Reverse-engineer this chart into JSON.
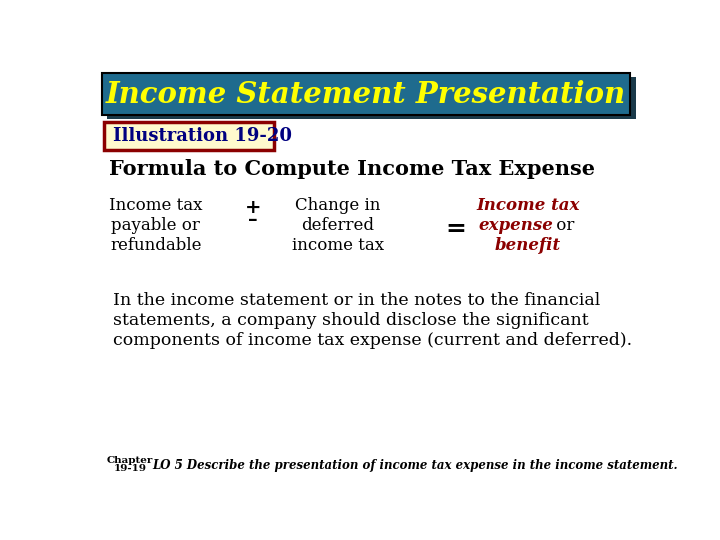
{
  "title": "Income Statement Presentation",
  "title_bg_color": "#1F6B8E",
  "title_text_color": "#FFFF00",
  "illustration_label": "Illustration 19-20",
  "illus_bg_color": "#FFFACD",
  "illus_border_color": "#8B0000",
  "formula_title": "Formula to Compute Income Tax Expense",
  "formula_title_color": "#000000",
  "col1_lines": [
    "Income tax",
    "payable or",
    "refundable"
  ],
  "col1_color": "#000000",
  "col2_lines": [
    "Change in",
    "deferred",
    "income tax"
  ],
  "col2_color": "#000000",
  "equals": "=",
  "equals_color": "#000000",
  "col3_line1": "Income tax",
  "col3_line2": "expense",
  "col3_line2b": " or",
  "col3_line3": "benefit",
  "col3_highlight_color": "#8B0000",
  "col3_normal_color": "#000000",
  "body_text_lines": [
    "In the income statement or in the notes to the financial",
    "statements, a company should disclose the significant",
    "components of income tax expense (current and deferred)."
  ],
  "body_text_color": "#000000",
  "footer_lo": "LO 5 Describe the presentation of income tax expense in the income statement.",
  "footer_color": "#000000",
  "bg_color": "#FFFFFF"
}
